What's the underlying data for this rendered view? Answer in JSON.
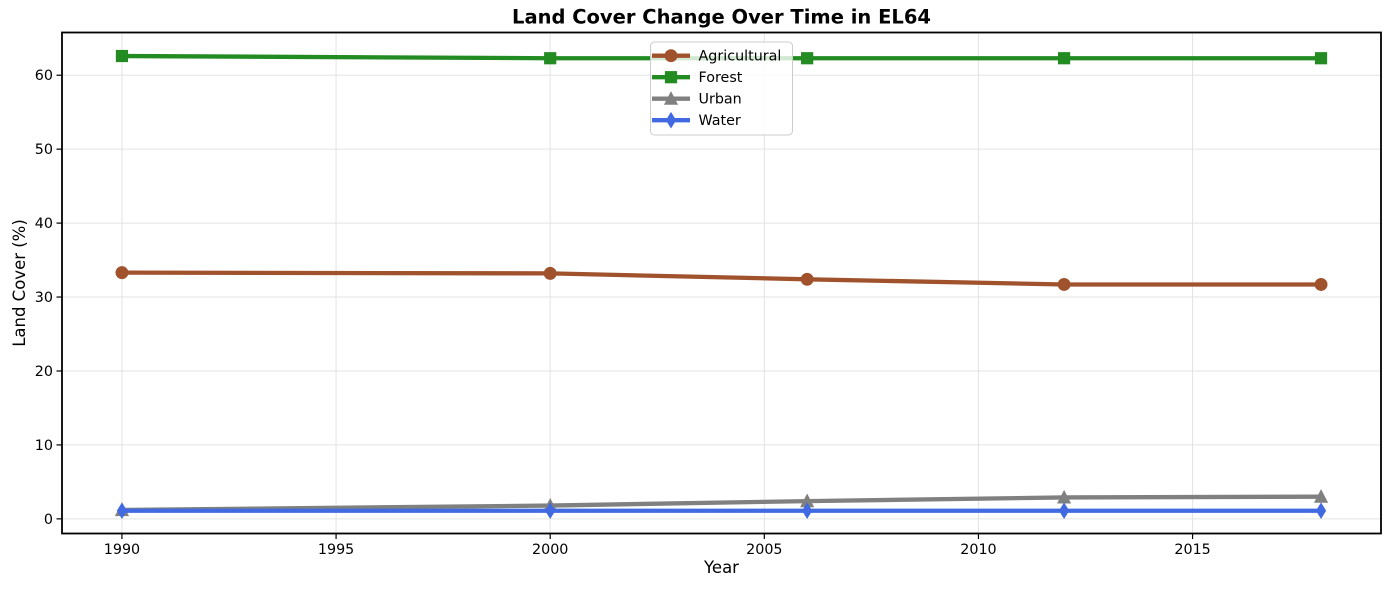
{
  "chart_data": {
    "type": "line",
    "title": "Land Cover Change Over Time in EL64",
    "xlabel": "Year",
    "ylabel": "Land Cover (%)",
    "x": [
      1990,
      2000,
      2006,
      2012,
      2018
    ],
    "series": [
      {
        "name": "Agricultural",
        "values": [
          33.3,
          33.2,
          32.4,
          31.7,
          31.7
        ],
        "color": "#A0522D",
        "marker": "circle"
      },
      {
        "name": "Forest",
        "values": [
          62.6,
          62.3,
          62.3,
          62.3,
          62.3
        ],
        "color": "#228B22",
        "marker": "square"
      },
      {
        "name": "Urban",
        "values": [
          1.2,
          1.8,
          2.4,
          2.9,
          3.0
        ],
        "color": "#808080",
        "marker": "triangle-up"
      },
      {
        "name": "Water",
        "values": [
          1.1,
          1.1,
          1.1,
          1.1,
          1.1
        ],
        "color": "#4169E1",
        "marker": "diamond"
      }
    ],
    "xticks": [
      1990,
      1995,
      2000,
      2005,
      2010,
      2015
    ],
    "yticks": [
      0,
      10,
      20,
      30,
      40,
      50,
      60
    ],
    "xlim": [
      1988.6,
      2019.4
    ],
    "ylim": [
      -1.98,
      65.78
    ],
    "grid": true,
    "legend_position": "upper center",
    "colors": {
      "grid": "#e3e3e3",
      "spine": "#000000",
      "legend_border": "#cccccc"
    }
  }
}
